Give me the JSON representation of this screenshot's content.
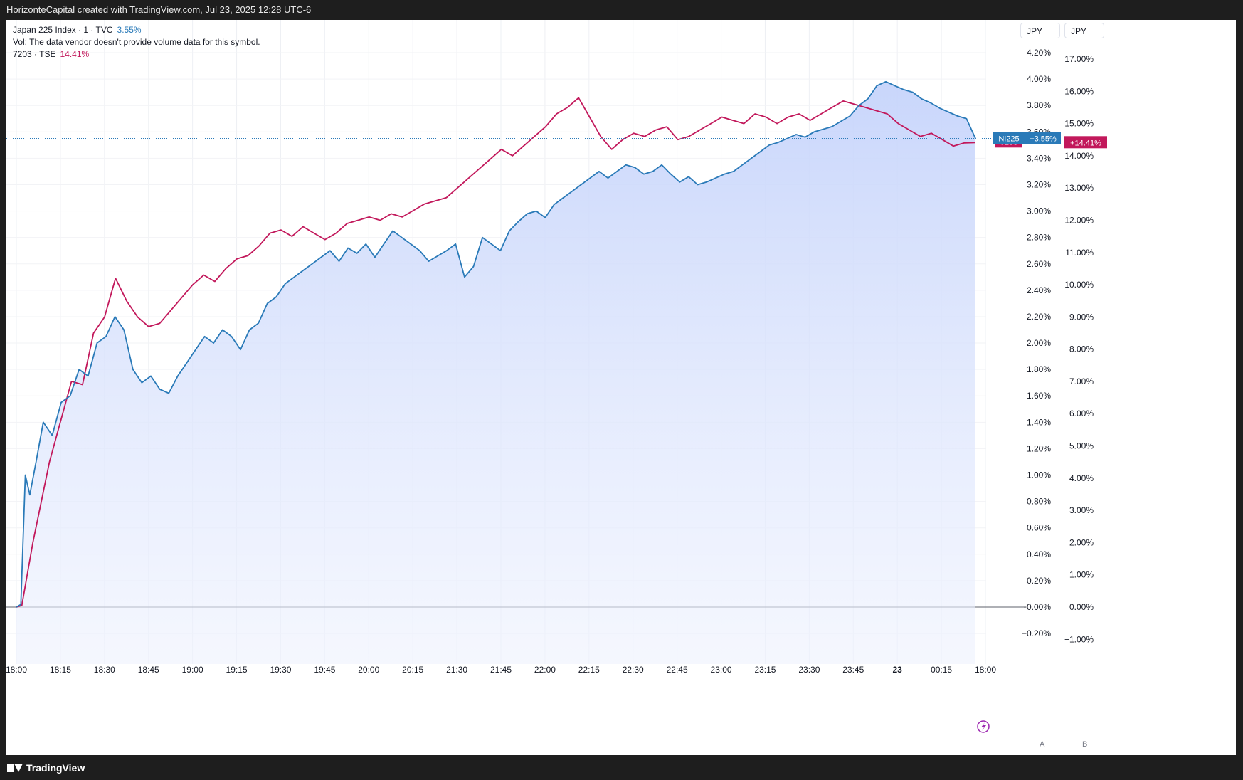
{
  "header": {
    "title": "HorizonteCapital created with TradingView.com, Jul 23, 2025 12:28 UTC-6"
  },
  "legend": {
    "series1_name": "Japan 225 Index · 1 · TVC",
    "series1_value": "3.55%",
    "vol_note": "Vol: The data vendor doesn't provide volume data for this symbol.",
    "series2_name": "7203 · TSE",
    "series2_value": "14.41%"
  },
  "controls": {
    "left_currency": "JPY",
    "right_currency": "JPY",
    "auto_label": "A",
    "log_label": "B"
  },
  "footer": {
    "brand": "TradingView"
  },
  "chart_data": {
    "type": "line",
    "x_ticks": [
      "18:00",
      "18:15",
      "18:30",
      "18:45",
      "19:00",
      "19:15",
      "19:30",
      "19:45",
      "20:00",
      "20:15",
      "21:30",
      "21:45",
      "22:00",
      "22:15",
      "22:30",
      "22:45",
      "23:00",
      "23:15",
      "23:30",
      "23:45",
      "23",
      "00:15",
      "18:00"
    ],
    "left_axis": {
      "ticks": [
        "4.20%",
        "4.00%",
        "3.80%",
        "3.60%",
        "3.40%",
        "3.20%",
        "3.00%",
        "2.80%",
        "2.60%",
        "2.40%",
        "2.20%",
        "2.00%",
        "1.80%",
        "1.60%",
        "1.40%",
        "1.20%",
        "1.00%",
        "0.80%",
        "0.60%",
        "0.40%",
        "0.20%",
        "−0.00%",
        "−0.20%"
      ],
      "ylim": [
        -0.2,
        4.2
      ]
    },
    "right_axis": {
      "ticks": [
        "17.00%",
        "16.00%",
        "15.00%",
        "14.00%",
        "13.00%",
        "12.00%",
        "11.00%",
        "10.00%",
        "9.00%",
        "8.00%",
        "7.00%",
        "6.00%",
        "5.00%",
        "4.00%",
        "3.00%",
        "2.00%",
        "1.00%",
        "0.00%",
        "−1.00%"
      ],
      "ylim": [
        -1,
        17
      ]
    },
    "series": [
      {
        "name": "NI225",
        "axis": "left",
        "color": "#2a7ab8",
        "fill": "#c9d6fb",
        "label": "+3.55%",
        "points": [
          [
            0,
            0
          ],
          [
            0.5,
            0.02
          ],
          [
            1,
            1
          ],
          [
            1.5,
            0.85
          ],
          [
            2.2,
            1.1
          ],
          [
            3,
            1.4
          ],
          [
            4,
            1.3
          ],
          [
            5,
            1.55
          ],
          [
            6,
            1.6
          ],
          [
            7,
            1.8
          ],
          [
            8,
            1.75
          ],
          [
            9,
            2.0
          ],
          [
            10,
            2.05
          ],
          [
            11,
            2.2
          ],
          [
            12,
            2.1
          ],
          [
            13,
            1.8
          ],
          [
            14,
            1.7
          ],
          [
            15,
            1.75
          ],
          [
            16,
            1.65
          ],
          [
            17,
            1.62
          ],
          [
            18,
            1.75
          ],
          [
            19,
            1.85
          ],
          [
            20,
            1.95
          ],
          [
            21,
            2.05
          ],
          [
            22,
            2.0
          ],
          [
            23,
            2.1
          ],
          [
            24,
            2.05
          ],
          [
            25,
            1.95
          ],
          [
            26,
            2.1
          ],
          [
            27,
            2.15
          ],
          [
            28,
            2.3
          ],
          [
            29,
            2.35
          ],
          [
            30,
            2.45
          ],
          [
            31,
            2.5
          ],
          [
            32,
            2.55
          ],
          [
            33,
            2.6
          ],
          [
            34,
            2.65
          ],
          [
            35,
            2.7
          ],
          [
            36,
            2.62
          ],
          [
            37,
            2.72
          ],
          [
            38,
            2.68
          ],
          [
            39,
            2.75
          ],
          [
            40,
            2.65
          ],
          [
            41,
            2.75
          ],
          [
            42,
            2.85
          ],
          [
            43,
            2.8
          ],
          [
            44,
            2.75
          ],
          [
            45,
            2.7
          ],
          [
            46,
            2.62
          ],
          [
            47,
            2.66
          ],
          [
            48,
            2.7
          ],
          [
            49,
            2.75
          ],
          [
            50,
            2.5
          ],
          [
            51,
            2.58
          ],
          [
            52,
            2.8
          ],
          [
            53,
            2.75
          ],
          [
            54,
            2.7
          ],
          [
            55,
            2.85
          ],
          [
            56,
            2.92
          ],
          [
            57,
            2.98
          ],
          [
            58,
            3.0
          ],
          [
            59,
            2.95
          ],
          [
            60,
            3.05
          ],
          [
            61,
            3.1
          ],
          [
            62,
            3.15
          ],
          [
            63,
            3.2
          ],
          [
            64,
            3.25
          ],
          [
            65,
            3.3
          ],
          [
            66,
            3.25
          ],
          [
            67,
            3.3
          ],
          [
            68,
            3.35
          ],
          [
            69,
            3.33
          ],
          [
            70,
            3.28
          ],
          [
            71,
            3.3
          ],
          [
            72,
            3.35
          ],
          [
            73,
            3.28
          ],
          [
            74,
            3.22
          ],
          [
            75,
            3.26
          ],
          [
            76,
            3.2
          ],
          [
            77,
            3.22
          ],
          [
            78,
            3.25
          ],
          [
            79,
            3.28
          ],
          [
            80,
            3.3
          ],
          [
            81,
            3.35
          ],
          [
            82,
            3.4
          ],
          [
            83,
            3.45
          ],
          [
            84,
            3.5
          ],
          [
            85,
            3.52
          ],
          [
            86,
            3.55
          ],
          [
            87,
            3.58
          ],
          [
            88,
            3.56
          ],
          [
            89,
            3.6
          ],
          [
            90,
            3.62
          ],
          [
            91,
            3.64
          ],
          [
            92,
            3.68
          ],
          [
            93,
            3.72
          ],
          [
            94,
            3.8
          ],
          [
            95,
            3.85
          ],
          [
            96,
            3.95
          ],
          [
            97,
            3.98
          ],
          [
            98,
            3.95
          ],
          [
            99,
            3.92
          ],
          [
            100,
            3.9
          ],
          [
            101,
            3.85
          ],
          [
            102,
            3.82
          ],
          [
            103,
            3.78
          ],
          [
            104,
            3.75
          ],
          [
            105,
            3.72
          ],
          [
            106,
            3.7
          ],
          [
            107,
            3.55
          ]
        ]
      },
      {
        "name": "7203",
        "axis": "right",
        "color": "#c2185b",
        "label": "+14.41%",
        "points": [
          [
            0,
            0
          ],
          [
            0.5,
            0.05
          ],
          [
            1.5,
            2.0
          ],
          [
            3,
            4.5
          ],
          [
            5,
            7.0
          ],
          [
            6,
            6.9
          ],
          [
            7,
            8.5
          ],
          [
            8,
            9.0
          ],
          [
            9,
            10.2
          ],
          [
            10,
            9.5
          ],
          [
            11,
            9.0
          ],
          [
            12,
            8.7
          ],
          [
            13,
            8.8
          ],
          [
            14,
            9.2
          ],
          [
            15,
            9.6
          ],
          [
            16,
            10.0
          ],
          [
            17,
            10.3
          ],
          [
            18,
            10.1
          ],
          [
            19,
            10.5
          ],
          [
            20,
            10.8
          ],
          [
            21,
            10.9
          ],
          [
            22,
            11.2
          ],
          [
            23,
            11.6
          ],
          [
            24,
            11.7
          ],
          [
            25,
            11.5
          ],
          [
            26,
            11.8
          ],
          [
            27,
            11.6
          ],
          [
            28,
            11.4
          ],
          [
            29,
            11.6
          ],
          [
            30,
            11.9
          ],
          [
            31,
            12.0
          ],
          [
            32,
            12.1
          ],
          [
            33,
            12.0
          ],
          [
            34,
            12.2
          ],
          [
            35,
            12.1
          ],
          [
            36,
            12.3
          ],
          [
            37,
            12.5
          ],
          [
            38,
            12.6
          ],
          [
            39,
            12.7
          ],
          [
            40,
            13.0
          ],
          [
            41,
            13.3
          ],
          [
            42,
            13.6
          ],
          [
            43,
            13.9
          ],
          [
            44,
            14.2
          ],
          [
            45,
            14.0
          ],
          [
            46,
            14.3
          ],
          [
            47,
            14.6
          ],
          [
            48,
            14.9
          ],
          [
            49,
            15.3
          ],
          [
            50,
            15.5
          ],
          [
            51,
            15.8
          ],
          [
            52,
            15.2
          ],
          [
            53,
            14.6
          ],
          [
            54,
            14.2
          ],
          [
            55,
            14.5
          ],
          [
            56,
            14.7
          ],
          [
            57,
            14.6
          ],
          [
            58,
            14.8
          ],
          [
            59,
            14.9
          ],
          [
            60,
            14.5
          ],
          [
            61,
            14.6
          ],
          [
            62,
            14.8
          ],
          [
            63,
            15.0
          ],
          [
            64,
            15.2
          ],
          [
            65,
            15.1
          ],
          [
            66,
            15.0
          ],
          [
            67,
            15.3
          ],
          [
            68,
            15.2
          ],
          [
            69,
            15.0
          ],
          [
            70,
            15.2
          ],
          [
            71,
            15.3
          ],
          [
            72,
            15.1
          ],
          [
            73,
            15.3
          ],
          [
            74,
            15.5
          ],
          [
            75,
            15.7
          ],
          [
            76,
            15.6
          ],
          [
            77,
            15.5
          ],
          [
            78,
            15.4
          ],
          [
            79,
            15.3
          ],
          [
            80,
            15.0
          ],
          [
            81,
            14.8
          ],
          [
            82,
            14.6
          ],
          [
            83,
            14.7
          ],
          [
            84,
            14.5
          ],
          [
            85,
            14.3
          ],
          [
            86,
            14.4
          ],
          [
            87,
            14.41
          ]
        ]
      }
    ],
    "last_value_label": "7203",
    "grid": true
  }
}
